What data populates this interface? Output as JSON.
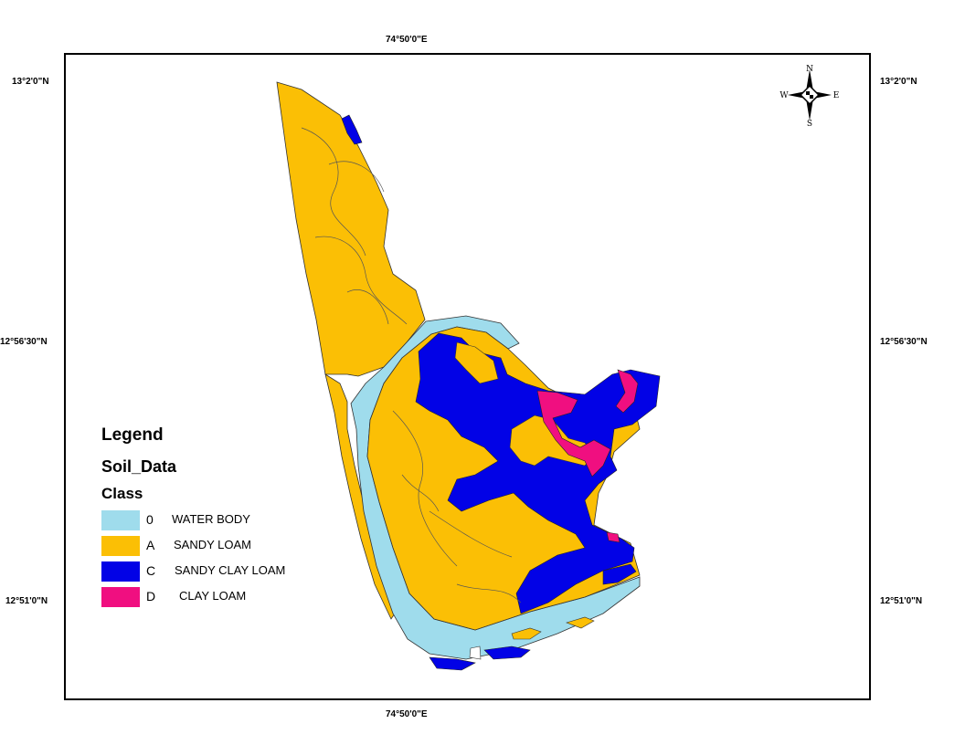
{
  "coordinates": {
    "top_longitude": "74°50'0\"E",
    "bottom_longitude": "74°50'0\"E",
    "left_lat_top": "13°2'0\"N",
    "left_lat_mid": "12°56'30\"N",
    "left_lat_bottom": "12°51'0\"N",
    "right_lat_top": "13°2'0\"N",
    "right_lat_mid": "12°56'30\"N",
    "right_lat_bottom": "12°51'0\"N"
  },
  "compass": {
    "north": "N",
    "south": "S",
    "east": "E",
    "west": "W"
  },
  "legend": {
    "title": "Legend",
    "layer": "Soil_Data",
    "field": "Class",
    "items": [
      {
        "code": "0",
        "label": "WATER BODY",
        "color": "#9fdcec"
      },
      {
        "code": "A",
        "label": "SANDY LOAM",
        "color": "#fbbf05"
      },
      {
        "code": "C",
        "label": "SANDY CLAY LOAM",
        "color": "#0202e6"
      },
      {
        "code": "D",
        "label": "CLAY LOAM",
        "color": "#f00f80"
      }
    ]
  },
  "colors": {
    "water": "#9fdcec",
    "sandy_loam": "#fbbf05",
    "sandy_clay_loam": "#0202e6",
    "clay_loam": "#f00f80",
    "frame": "#000000"
  }
}
